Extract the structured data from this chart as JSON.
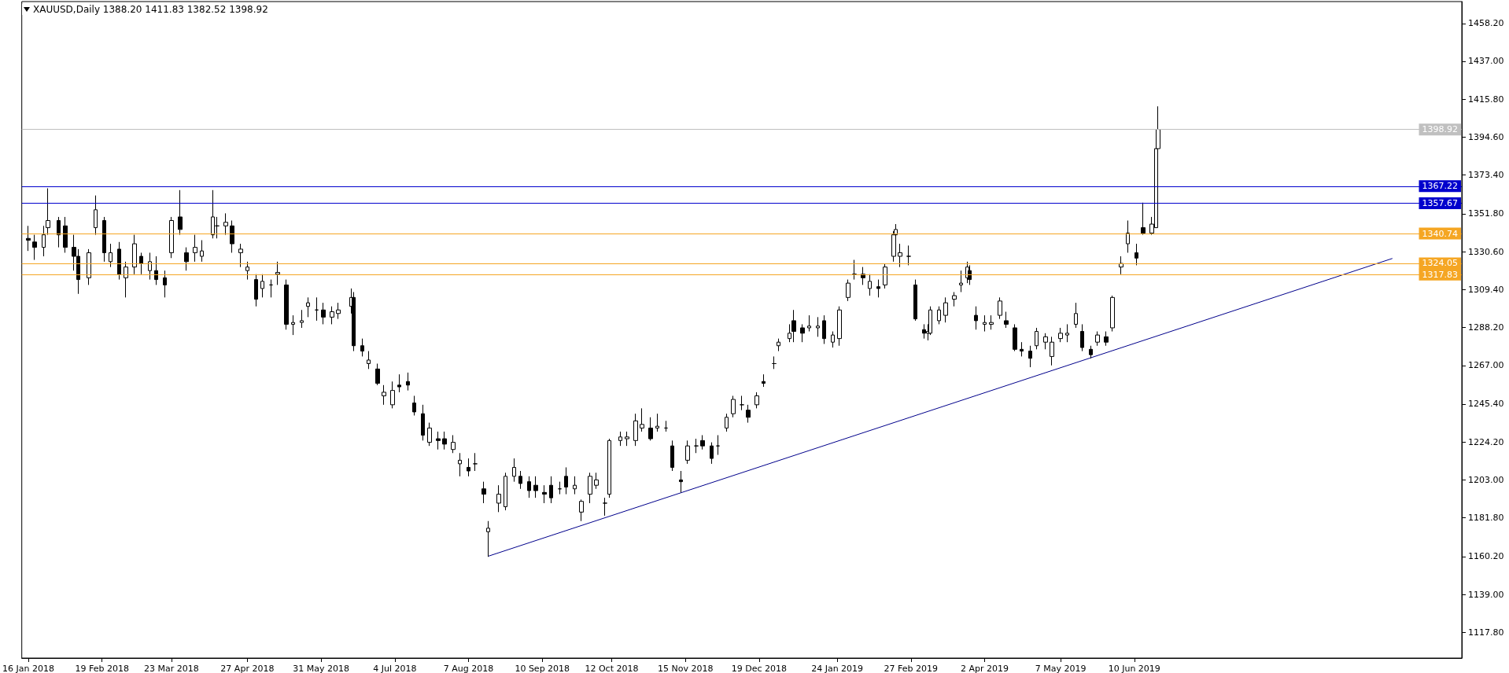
{
  "chart_data": {
    "type": "candlestick",
    "title": "XAUUSD,Daily  1388.20 1411.83 1382.52 1398.92",
    "x": [
      "2018-01-16",
      "2018-01-19",
      "2018-01-23",
      "2018-01-25",
      "2018-01-30",
      "2018-02-02",
      "2018-02-06",
      "2018-02-08",
      "2018-02-13",
      "2018-02-16",
      "2018-02-20",
      "2018-02-23",
      "2018-02-27",
      "2018-03-02",
      "2018-03-06",
      "2018-03-09",
      "2018-03-13",
      "2018-03-16",
      "2018-03-20",
      "2018-03-23",
      "2018-03-27",
      "2018-03-30",
      "2018-04-03",
      "2018-04-06",
      "2018-04-11",
      "2018-04-13",
      "2018-04-17",
      "2018-04-20",
      "2018-04-24",
      "2018-04-27",
      "2018-05-01",
      "2018-05-04",
      "2018-05-08",
      "2018-05-11",
      "2018-05-15",
      "2018-05-18",
      "2018-05-22",
      "2018-05-25",
      "2018-05-29",
      "2018-06-01",
      "2018-06-05",
      "2018-06-08",
      "2018-06-14",
      "2018-06-15",
      "2018-06-19",
      "2018-06-22",
      "2018-06-26",
      "2018-06-29",
      "2018-07-03",
      "2018-07-06",
      "2018-07-10",
      "2018-07-13",
      "2018-07-17",
      "2018-07-20",
      "2018-07-24",
      "2018-07-27",
      "2018-07-31",
      "2018-08-03",
      "2018-08-07",
      "2018-08-10",
      "2018-08-14",
      "2018-08-16",
      "2018-08-21",
      "2018-08-24",
      "2018-08-28",
      "2018-08-31",
      "2018-09-04",
      "2018-09-07",
      "2018-09-11",
      "2018-09-14",
      "2018-09-18",
      "2018-09-21",
      "2018-09-25",
      "2018-09-28",
      "2018-10-02",
      "2018-10-05",
      "2018-10-09",
      "2018-10-11",
      "2018-10-16",
      "2018-10-19",
      "2018-10-23",
      "2018-10-26",
      "2018-10-30",
      "2018-11-02",
      "2018-11-06",
      "2018-11-09",
      "2018-11-13",
      "2018-11-16",
      "2018-11-20",
      "2018-11-23",
      "2018-11-27",
      "2018-11-30",
      "2018-12-04",
      "2018-12-07",
      "2018-12-11",
      "2018-12-14",
      "2018-12-18",
      "2018-12-21",
      "2018-12-26",
      "2018-12-28",
      "2019-01-02",
      "2019-01-04",
      "2019-01-08",
      "2019-01-11",
      "2019-01-15",
      "2019-01-18",
      "2019-01-22",
      "2019-01-25",
      "2019-01-29",
      "2019-02-01",
      "2019-02-05",
      "2019-02-08",
      "2019-02-12",
      "2019-02-15",
      "2019-02-19",
      "2019-02-20",
      "2019-02-22",
      "2019-02-26",
      "2019-03-01",
      "2019-03-05",
      "2019-03-07",
      "2019-03-08",
      "2019-03-12",
      "2019-03-15",
      "2019-03-19",
      "2019-03-22",
      "2019-03-25",
      "2019-03-26",
      "2019-03-29",
      "2019-04-02",
      "2019-04-05",
      "2019-04-09",
      "2019-04-12",
      "2019-04-16",
      "2019-04-19",
      "2019-04-23",
      "2019-04-26",
      "2019-04-30",
      "2019-05-03",
      "2019-05-07",
      "2019-05-10",
      "2019-05-14",
      "2019-05-17",
      "2019-05-21",
      "2019-05-24",
      "2019-05-28",
      "2019-05-31",
      "2019-06-04",
      "2019-06-07",
      "2019-06-11",
      "2019-06-14",
      "2019-06-18",
      "2019-06-20",
      "2019-06-21"
    ],
    "ohlc": [
      [
        1338,
        1345,
        1331,
        1337
      ],
      [
        1336,
        1340,
        1326,
        1333
      ],
      [
        1333,
        1345,
        1328,
        1340
      ],
      [
        1344,
        1366,
        1340,
        1348
      ],
      [
        1348,
        1350,
        1333,
        1340
      ],
      [
        1345,
        1350,
        1330,
        1333
      ],
      [
        1333,
        1340,
        1320,
        1328
      ],
      [
        1328,
        1332,
        1307,
        1315
      ],
      [
        1316,
        1332,
        1312,
        1330
      ],
      [
        1344,
        1362,
        1340,
        1354
      ],
      [
        1348,
        1350,
        1325,
        1330
      ],
      [
        1325,
        1335,
        1322,
        1330
      ],
      [
        1332,
        1336,
        1315,
        1318
      ],
      [
        1316,
        1325,
        1305,
        1322
      ],
      [
        1322,
        1340,
        1318,
        1335
      ],
      [
        1328,
        1330,
        1318,
        1324
      ],
      [
        1320,
        1330,
        1315,
        1325
      ],
      [
        1320,
        1328,
        1312,
        1315
      ],
      [
        1316,
        1320,
        1305,
        1312
      ],
      [
        1330,
        1350,
        1327,
        1348
      ],
      [
        1350,
        1365,
        1340,
        1343
      ],
      [
        1330,
        1333,
        1320,
        1325
      ],
      [
        1330,
        1340,
        1325,
        1333
      ],
      [
        1328,
        1337,
        1325,
        1331
      ],
      [
        1340,
        1365,
        1338,
        1350
      ],
      [
        1345,
        1350,
        1338,
        1345
      ],
      [
        1345,
        1352,
        1340,
        1347
      ],
      [
        1345,
        1348,
        1330,
        1335
      ],
      [
        1330,
        1335,
        1322,
        1332
      ],
      [
        1320,
        1325,
        1315,
        1322
      ],
      [
        1315,
        1318,
        1300,
        1304
      ],
      [
        1310,
        1318,
        1305,
        1314
      ],
      [
        1312,
        1315,
        1305,
        1312
      ],
      [
        1318,
        1325,
        1312,
        1319
      ],
      [
        1312,
        1315,
        1287,
        1290
      ],
      [
        1290,
        1295,
        1284,
        1291
      ],
      [
        1291,
        1298,
        1288,
        1292
      ],
      [
        1300,
        1305,
        1294,
        1302
      ],
      [
        1298,
        1305,
        1292,
        1298
      ],
      [
        1298,
        1302,
        1290,
        1294
      ],
      [
        1294,
        1300,
        1290,
        1297
      ],
      [
        1296,
        1302,
        1293,
        1298
      ],
      [
        1300,
        1310,
        1296,
        1305
      ],
      [
        1305,
        1308,
        1275,
        1278
      ],
      [
        1278,
        1282,
        1272,
        1275
      ],
      [
        1268,
        1275,
        1265,
        1270
      ],
      [
        1265,
        1268,
        1256,
        1257
      ],
      [
        1250,
        1256,
        1245,
        1252
      ],
      [
        1245,
        1258,
        1243,
        1253
      ],
      [
        1256,
        1262,
        1252,
        1255
      ],
      [
        1258,
        1263,
        1253,
        1256
      ],
      [
        1246,
        1250,
        1239,
        1241
      ],
      [
        1240,
        1245,
        1225,
        1228
      ],
      [
        1224,
        1235,
        1222,
        1232
      ],
      [
        1226,
        1230,
        1220,
        1225
      ],
      [
        1226,
        1230,
        1220,
        1223
      ],
      [
        1220,
        1228,
        1218,
        1224
      ],
      [
        1212,
        1218,
        1205,
        1214
      ],
      [
        1210,
        1215,
        1205,
        1208
      ],
      [
        1212,
        1218,
        1208,
        1212
      ],
      [
        1198,
        1202,
        1190,
        1195
      ],
      [
        1174,
        1180,
        1160,
        1176
      ],
      [
        1190,
        1200,
        1185,
        1195
      ],
      [
        1188,
        1207,
        1186,
        1205
      ],
      [
        1205,
        1215,
        1202,
        1210
      ],
      [
        1205,
        1208,
        1198,
        1201
      ],
      [
        1202,
        1205,
        1193,
        1197
      ],
      [
        1200,
        1205,
        1193,
        1197
      ],
      [
        1196,
        1200,
        1190,
        1195
      ],
      [
        1200,
        1205,
        1190,
        1193
      ],
      [
        1198,
        1202,
        1195,
        1198
      ],
      [
        1205,
        1210,
        1195,
        1199
      ],
      [
        1198,
        1205,
        1195,
        1200
      ],
      [
        1185,
        1192,
        1180,
        1191
      ],
      [
        1195,
        1207,
        1190,
        1205
      ],
      [
        1200,
        1207,
        1198,
        1203
      ],
      [
        1190,
        1193,
        1183,
        1190
      ],
      [
        1195,
        1226,
        1193,
        1225
      ],
      [
        1225,
        1230,
        1222,
        1227
      ],
      [
        1226,
        1230,
        1222,
        1227
      ],
      [
        1225,
        1240,
        1222,
        1236
      ],
      [
        1232,
        1243,
        1230,
        1234
      ],
      [
        1232,
        1238,
        1225,
        1226
      ],
      [
        1232,
        1240,
        1230,
        1233
      ],
      [
        1232,
        1236,
        1230,
        1232
      ],
      [
        1222,
        1225,
        1208,
        1210
      ],
      [
        1203,
        1208,
        1196,
        1202
      ],
      [
        1214,
        1225,
        1212,
        1222
      ],
      [
        1222,
        1226,
        1218,
        1222
      ],
      [
        1225,
        1228,
        1220,
        1222
      ],
      [
        1222,
        1224,
        1212,
        1215
      ],
      [
        1222,
        1228,
        1217,
        1222
      ],
      [
        1232,
        1240,
        1230,
        1238
      ],
      [
        1240,
        1250,
        1238,
        1248
      ],
      [
        1245,
        1250,
        1242,
        1245
      ],
      [
        1242,
        1245,
        1235,
        1238
      ],
      [
        1245,
        1252,
        1243,
        1250
      ],
      [
        1258,
        1262,
        1255,
        1257
      ],
      [
        1268,
        1272,
        1265,
        1268
      ],
      [
        1278,
        1282,
        1275,
        1280
      ],
      [
        1282,
        1290,
        1280,
        1285
      ],
      [
        1292,
        1298,
        1280,
        1286
      ],
      [
        1288,
        1290,
        1280,
        1285
      ],
      [
        1288,
        1295,
        1286,
        1289
      ],
      [
        1288,
        1294,
        1283,
        1289
      ],
      [
        1292,
        1295,
        1279,
        1282
      ],
      [
        1280,
        1286,
        1277,
        1284
      ],
      [
        1282,
        1300,
        1278,
        1298
      ],
      [
        1305,
        1315,
        1303,
        1313
      ],
      [
        1318,
        1326,
        1315,
        1318
      ],
      [
        1318,
        1322,
        1312,
        1316
      ],
      [
        1310,
        1318,
        1306,
        1314
      ],
      [
        1311,
        1315,
        1305,
        1310
      ],
      [
        1312,
        1324,
        1310,
        1322
      ],
      [
        1328,
        1342,
        1325,
        1340
      ],
      [
        1340,
        1346,
        1335,
        1343
      ],
      [
        1328,
        1335,
        1322,
        1330
      ],
      [
        1328,
        1334,
        1323,
        1328
      ],
      [
        1312,
        1315,
        1292,
        1293
      ],
      [
        1287,
        1290,
        1282,
        1285
      ],
      [
        1285,
        1290,
        1281,
        1286
      ],
      [
        1285,
        1300,
        1284,
        1298
      ],
      [
        1292,
        1300,
        1290,
        1298
      ],
      [
        1295,
        1305,
        1291,
        1302
      ],
      [
        1304,
        1308,
        1300,
        1306
      ],
      [
        1312,
        1320,
        1308,
        1313
      ],
      [
        1316,
        1325,
        1313,
        1322
      ],
      [
        1320,
        1323,
        1312,
        1315
      ],
      [
        1295,
        1300,
        1287,
        1292
      ],
      [
        1290,
        1295,
        1286,
        1291
      ],
      [
        1290,
        1295,
        1287,
        1291
      ],
      [
        1295,
        1305,
        1293,
        1303
      ],
      [
        1292,
        1297,
        1288,
        1290
      ],
      [
        1288,
        1290,
        1275,
        1276
      ],
      [
        1276,
        1280,
        1272,
        1275
      ],
      [
        1275,
        1278,
        1266,
        1271
      ],
      [
        1278,
        1288,
        1276,
        1286
      ],
      [
        1280,
        1285,
        1276,
        1283
      ],
      [
        1272,
        1283,
        1267,
        1280
      ],
      [
        1282,
        1288,
        1280,
        1285
      ],
      [
        1284,
        1290,
        1280,
        1285
      ],
      [
        1290,
        1302,
        1288,
        1296
      ],
      [
        1286,
        1290,
        1275,
        1277
      ],
      [
        1276,
        1278,
        1271,
        1273
      ],
      [
        1280,
        1286,
        1278,
        1284
      ],
      [
        1283,
        1286,
        1278,
        1280
      ],
      [
        1288,
        1306,
        1286,
        1305
      ],
      [
        1322,
        1328,
        1318,
        1324
      ],
      [
        1335,
        1348,
        1330,
        1341
      ],
      [
        1330,
        1335,
        1323,
        1327
      ],
      [
        1344,
        1358,
        1340,
        1341
      ],
      [
        1341,
        1350,
        1340,
        1346
      ],
      [
        1344,
        1394,
        1344,
        1388.2
      ],
      [
        1388.2,
        1411.83,
        1382.52,
        1398.92
      ]
    ],
    "series": [
      {
        "type": "line",
        "x": [
          "2018-08-16",
          "2019-10-07"
        ],
        "values": [
          1160.3,
          1326.8
        ],
        "color": "#00008b"
      }
    ],
    "ref_lines": [
      {
        "axis": "y",
        "value": 1398.92,
        "label": "1398.92",
        "color": "#c0c0c0"
      },
      {
        "axis": "y",
        "value": 1367.22,
        "label": "1367.22",
        "color": "#0000cd"
      },
      {
        "axis": "y",
        "value": 1357.67,
        "label": "1357.67",
        "color": "#0000cd"
      },
      {
        "axis": "y",
        "value": 1340.74,
        "label": "1340.74",
        "color": "#f5a623"
      },
      {
        "axis": "y",
        "value": 1324.05,
        "label": "1324.05",
        "color": "#f5a623"
      },
      {
        "axis": "y",
        "value": 1317.83,
        "label": "1317.83",
        "color": "#f5a623"
      }
    ],
    "xlim": [
      "2018-01-13",
      "2019-11-08"
    ],
    "xticks": [
      {
        "value": "2018-01-16",
        "label": "16 Jan 2018"
      },
      {
        "value": "2018-02-19",
        "label": "19 Feb 2018"
      },
      {
        "value": "2018-03-23",
        "label": "23 Mar 2018"
      },
      {
        "value": "2018-04-27",
        "label": "27 Apr 2018"
      },
      {
        "value": "2018-05-31",
        "label": "31 May 2018"
      },
      {
        "value": "2018-07-04",
        "label": "4 Jul 2018"
      },
      {
        "value": "2018-08-07",
        "label": "7 Aug 2018"
      },
      {
        "value": "2018-09-10",
        "label": "10 Sep 2018"
      },
      {
        "value": "2018-10-12",
        "label": "12 Oct 2018"
      },
      {
        "value": "2018-11-15",
        "label": "15 Nov 2018"
      },
      {
        "value": "2018-12-19",
        "label": "19 Dec 2018"
      },
      {
        "value": "2019-01-24",
        "label": "24 Jan 2019"
      },
      {
        "value": "2019-02-27",
        "label": "27 Feb 2019"
      },
      {
        "value": "2019-04-02",
        "label": "2 Apr 2019"
      },
      {
        "value": "2019-05-07",
        "label": "7 May 2019"
      },
      {
        "value": "2019-06-10",
        "label": "10 Jun 2019"
      }
    ],
    "ylim": [
      1103.4,
      1470.4
    ],
    "yticks": [
      {
        "value": 1117.8,
        "label": "1117.80"
      },
      {
        "value": 1139,
        "label": "1139.00"
      },
      {
        "value": 1160.2,
        "label": "1160.20"
      },
      {
        "value": 1181.8,
        "label": "1181.80"
      },
      {
        "value": 1203,
        "label": "1203.00"
      },
      {
        "value": 1224.2,
        "label": "1224.20"
      },
      {
        "value": 1245.4,
        "label": "1245.40"
      },
      {
        "value": 1267,
        "label": "1267.00"
      },
      {
        "value": 1288.2,
        "label": "1288.20"
      },
      {
        "value": 1309.4,
        "label": "1309.40"
      },
      {
        "value": 1330.6,
        "label": "1330.60"
      },
      {
        "value": 1351.8,
        "label": "1351.80"
      },
      {
        "value": 1373.4,
        "label": "1373.40"
      },
      {
        "value": 1394.6,
        "label": "1394.60"
      },
      {
        "value": 1415.8,
        "label": "1415.80"
      },
      {
        "value": 1437,
        "label": "1437.00"
      },
      {
        "value": 1458.2,
        "label": "1458.20"
      }
    ]
  }
}
